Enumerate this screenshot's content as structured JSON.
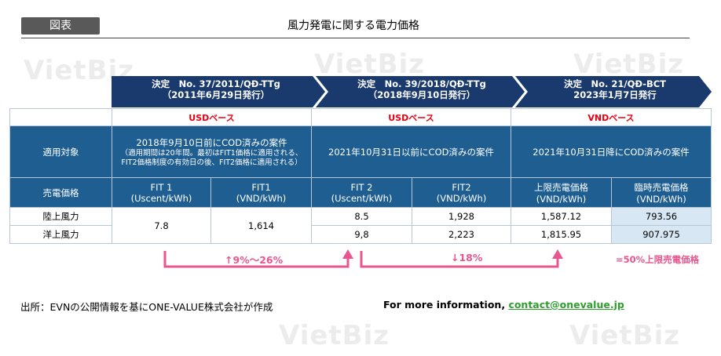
{
  "header": {
    "tag_label": "図表",
    "title": "風力発電に関する電力価格"
  },
  "watermark": "VietBiz",
  "decisions": [
    {
      "line1": "決定　No. 37/2011/QĐ-TTg",
      "line2": "（2011年6月29日発行）"
    },
    {
      "line1": "決定　No. 39/2018/QĐ-TTg",
      "line2": "（2018年9月10日発行）"
    },
    {
      "line1": "決定　No. 21/QĐ-BCT",
      "line2": "2023年1月7日発行"
    }
  ],
  "currency_bands": [
    "USDベース",
    "USDベース",
    "VNDベース"
  ],
  "row_labels": {
    "applicable": "適用対象",
    "price": "売電価格",
    "onshore": "陸上風力",
    "offshore": "洋上風力"
  },
  "applicable": {
    "col1_main": "2018年9月10日前にCOD済みの案件",
    "col1_note": "（適用期間は20年間。最初はFIT1価格に適用される、FIT2価格制度の有効日の後、FIT2価格に適用される）",
    "col2": "2021年10月31日以前にCOD済みの案件",
    "col3": "2021年10月31日降にCOD済みの案件"
  },
  "price_headers": [
    {
      "line1": "FIT 1",
      "line2": "(Uscent/kWh)"
    },
    {
      "line1": "FIT1",
      "line2": "(VND/kWh)"
    },
    {
      "line1": "FIT 2",
      "line2": "(Uscent/kWh)"
    },
    {
      "line1": "FIT2",
      "line2": "(VND/kWh)"
    },
    {
      "line1": "上限売電価格",
      "line2": "(VND/kWh)"
    },
    {
      "line1": "臨時売電価格",
      "line2": "(VND/kWh)"
    }
  ],
  "values": {
    "fit1_uscent": "7.8",
    "fit1_vnd": "1,614",
    "onshore": [
      "8.5",
      "1,928",
      "1,587.12",
      "793.56"
    ],
    "offshore": [
      "9,8",
      "2,223",
      "1,815.95",
      "907.975"
    ]
  },
  "changes": {
    "change1": "↑9%～26%",
    "change2": "↓18%",
    "note": "=50%上限売電価格"
  },
  "footer": {
    "source": "出所：EVNの公開情報を基にONE-VALUE株式会社が作成",
    "more_label": "For more information, ",
    "contact": "contact@onevalue.jp"
  },
  "colors": {
    "navy": "#1a3a6e",
    "table_blue": "#1f5e91",
    "band_red": "#e60012",
    "pink": "#e8568f",
    "tint": "#d7e7f4",
    "link_green": "#2e9e2e"
  }
}
